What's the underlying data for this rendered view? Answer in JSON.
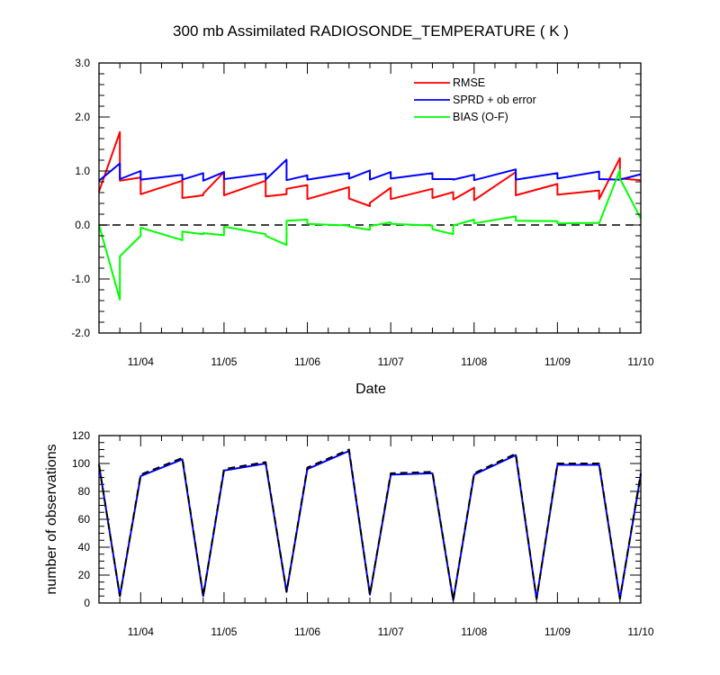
{
  "chart_data": [
    {
      "type": "line",
      "title": "300 mb Assimilated RADIOSONDE_TEMPERATURE ( K )",
      "xlabel": "Date",
      "ylabel": "",
      "xlim": [
        "11/03 12Z",
        "11/10 00Z"
      ],
      "ylim": [
        -2.0,
        3.0
      ],
      "yticks": [
        "3.0",
        "2.0",
        "1.0",
        "0.0",
        "-1.0",
        "-2.0"
      ],
      "xticks": [
        "11/04",
        "11/05",
        "11/06",
        "11/07",
        "11/08",
        "11/09",
        "11/10"
      ],
      "x": [
        "11/03 12Z",
        "11/03 18Z",
        "11/04 00Z",
        "11/04 06Z",
        "11/04 12Z",
        "11/04 18Z",
        "11/05 00Z",
        "11/05 06Z",
        "11/05 12Z",
        "11/05 18Z",
        "11/06 00Z",
        "11/06 06Z",
        "11/06 12Z",
        "11/06 18Z",
        "11/07 00Z",
        "11/07 06Z",
        "11/07 12Z",
        "11/07 18Z",
        "11/08 00Z",
        "11/08 06Z",
        "11/08 12Z",
        "11/08 18Z",
        "11/09 00Z",
        "11/09 06Z",
        "11/09 12Z",
        "11/09 18Z",
        "11/10 00Z"
      ],
      "reference_line": {
        "y": 0.0,
        "style": "dashed"
      },
      "legend_position": "top-right",
      "series": [
        {
          "name": "RMSE",
          "color": "#ff0000",
          "segments": [
            [
              [
                0.0,
                0.62
              ],
              [
                0.25,
                1.72
              ]
            ],
            [
              [
                0.25,
                0.82
              ],
              [
                0.5,
                0.88
              ]
            ],
            [
              [
                0.5,
                0.57
              ],
              [
                1.0,
                0.82
              ]
            ],
            [
              [
                1.0,
                0.5
              ],
              [
                1.25,
                0.55
              ]
            ],
            [
              [
                1.25,
                0.58
              ],
              [
                1.5,
                0.98
              ]
            ],
            [
              [
                1.5,
                0.55
              ],
              [
                2.0,
                0.82
              ]
            ],
            [
              [
                2.0,
                0.53
              ],
              [
                2.25,
                0.57
              ]
            ],
            [
              [
                2.25,
                0.67
              ],
              [
                2.5,
                0.74
              ]
            ],
            [
              [
                2.5,
                0.48
              ],
              [
                3.0,
                0.7
              ]
            ],
            [
              [
                3.0,
                0.49
              ],
              [
                3.25,
                0.35
              ]
            ],
            [
              [
                3.25,
                0.41
              ],
              [
                3.5,
                0.69
              ]
            ],
            [
              [
                3.5,
                0.48
              ],
              [
                4.0,
                0.67
              ]
            ],
            [
              [
                4.0,
                0.5
              ],
              [
                4.25,
                0.61
              ]
            ],
            [
              [
                4.25,
                0.47
              ],
              [
                4.5,
                0.69
              ]
            ],
            [
              [
                4.5,
                0.46
              ],
              [
                5.0,
                0.98
              ]
            ],
            [
              [
                5.0,
                0.55
              ],
              [
                5.5,
                0.76
              ]
            ],
            [
              [
                5.5,
                0.56
              ],
              [
                6.0,
                0.64
              ]
            ],
            [
              [
                6.0,
                0.48
              ],
              [
                6.25,
                1.24
              ]
            ],
            [
              [
                6.25,
                0.86
              ],
              [
                6.5,
                0.83
              ]
            ]
          ]
        },
        {
          "name": "SPRD + ob error",
          "color": "#0000ff",
          "segments": [
            [
              [
                0.0,
                0.82
              ],
              [
                0.25,
                1.14
              ]
            ],
            [
              [
                0.25,
                0.85
              ],
              [
                0.5,
                1.0
              ]
            ],
            [
              [
                0.5,
                0.84
              ],
              [
                1.0,
                0.93
              ]
            ],
            [
              [
                1.0,
                0.84
              ],
              [
                1.25,
                0.96
              ]
            ],
            [
              [
                1.25,
                0.82
              ],
              [
                1.5,
                0.98
              ]
            ],
            [
              [
                1.5,
                0.85
              ],
              [
                2.0,
                0.95
              ]
            ],
            [
              [
                2.0,
                0.84
              ],
              [
                2.25,
                1.21
              ]
            ],
            [
              [
                2.25,
                0.83
              ],
              [
                2.5,
                0.92
              ]
            ],
            [
              [
                2.5,
                0.84
              ],
              [
                3.0,
                0.96
              ]
            ],
            [
              [
                3.0,
                0.86
              ],
              [
                3.25,
                1.01
              ]
            ],
            [
              [
                3.25,
                0.84
              ],
              [
                3.5,
                0.98
              ]
            ],
            [
              [
                3.5,
                0.86
              ],
              [
                4.0,
                0.96
              ]
            ],
            [
              [
                4.0,
                0.85
              ],
              [
                4.25,
                0.85
              ]
            ],
            [
              [
                4.25,
                0.84
              ],
              [
                4.5,
                0.93
              ]
            ],
            [
              [
                4.5,
                0.83
              ],
              [
                5.0,
                1.03
              ]
            ],
            [
              [
                5.0,
                0.84
              ],
              [
                5.5,
                0.96
              ]
            ],
            [
              [
                5.5,
                0.86
              ],
              [
                6.0,
                0.99
              ]
            ],
            [
              [
                6.0,
                0.85
              ],
              [
                6.25,
                0.84
              ]
            ],
            [
              [
                6.25,
                0.84
              ],
              [
                6.5,
                0.94
              ]
            ]
          ]
        },
        {
          "name": "BIAS (O-F)",
          "color": "#00ff00",
          "segments": [
            [
              [
                0.0,
                0.0
              ],
              [
                0.25,
                -1.38
              ]
            ],
            [
              [
                0.25,
                -0.58
              ],
              [
                0.5,
                -0.2
              ]
            ],
            [
              [
                0.5,
                -0.05
              ],
              [
                1.0,
                -0.28
              ]
            ],
            [
              [
                1.0,
                -0.12
              ],
              [
                1.25,
                -0.17
              ]
            ],
            [
              [
                1.25,
                -0.15
              ],
              [
                1.5,
                -0.19
              ]
            ],
            [
              [
                1.5,
                -0.03
              ],
              [
                2.0,
                -0.17
              ]
            ],
            [
              [
                2.0,
                -0.2
              ],
              [
                2.25,
                -0.37
              ]
            ],
            [
              [
                2.25,
                0.08
              ],
              [
                2.5,
                0.1
              ]
            ],
            [
              [
                2.5,
                0.02
              ],
              [
                3.0,
                -0.01
              ]
            ],
            [
              [
                3.0,
                -0.03
              ],
              [
                3.25,
                -0.09
              ]
            ],
            [
              [
                3.25,
                -0.02
              ],
              [
                3.5,
                0.05
              ]
            ],
            [
              [
                3.5,
                0.02
              ],
              [
                4.0,
                -0.01
              ]
            ],
            [
              [
                4.0,
                -0.08
              ],
              [
                4.25,
                -0.17
              ]
            ],
            [
              [
                4.25,
                -0.01
              ],
              [
                4.5,
                0.1
              ]
            ],
            [
              [
                4.5,
                0.03
              ],
              [
                5.0,
                0.16
              ]
            ],
            [
              [
                5.0,
                0.08
              ],
              [
                5.5,
                0.07
              ]
            ],
            [
              [
                5.5,
                0.03
              ],
              [
                6.0,
                0.04
              ]
            ],
            [
              [
                6.0,
                0.03
              ],
              [
                6.25,
                1.02
              ]
            ],
            [
              [
                6.25,
                0.86
              ],
              [
                6.5,
                0.12
              ]
            ]
          ]
        }
      ]
    },
    {
      "type": "line",
      "title": "",
      "xlabel": "",
      "ylabel": "number of observations",
      "xlim": [
        "11/03 12Z",
        "11/10 00Z"
      ],
      "ylim": [
        0,
        120
      ],
      "yticks": [
        "120",
        "100",
        "80",
        "60",
        "40",
        "20",
        "0"
      ],
      "xticks": [
        "11/04",
        "11/05",
        "11/06",
        "11/07",
        "11/08",
        "11/09",
        "11/10"
      ],
      "series": [
        {
          "color": "#0000ff",
          "style": "solid",
          "points": [
            [
              0.0,
              99
            ],
            [
              0.25,
              5
            ],
            [
              0.5,
              91
            ],
            [
              1.0,
              103
            ],
            [
              1.25,
              5
            ],
            [
              1.5,
              95
            ],
            [
              2.0,
              100
            ],
            [
              2.25,
              8
            ],
            [
              2.5,
              96
            ],
            [
              3.0,
              109
            ],
            [
              3.25,
              6
            ],
            [
              3.5,
              92
            ],
            [
              4.0,
              93
            ],
            [
              4.25,
              2
            ],
            [
              4.5,
              92
            ],
            [
              5.0,
              106
            ],
            [
              5.25,
              3
            ],
            [
              5.5,
              99
            ],
            [
              6.0,
              99
            ],
            [
              6.25,
              3
            ],
            [
              6.5,
              92
            ]
          ]
        },
        {
          "color": "#000000",
          "style": "dashed",
          "points": [
            [
              0.0,
              99
            ],
            [
              0.25,
              5
            ],
            [
              0.5,
              92
            ],
            [
              1.0,
              104
            ],
            [
              1.25,
              5
            ],
            [
              1.5,
              96
            ],
            [
              2.0,
              101
            ],
            [
              2.25,
              8
            ],
            [
              2.5,
              97
            ],
            [
              3.0,
              110
            ],
            [
              3.25,
              6
            ],
            [
              3.5,
              93
            ],
            [
              4.0,
              94
            ],
            [
              4.25,
              2
            ],
            [
              4.5,
              93
            ],
            [
              5.0,
              107
            ],
            [
              5.25,
              3
            ],
            [
              5.5,
              100
            ],
            [
              6.0,
              100
            ],
            [
              6.25,
              3
            ],
            [
              6.5,
              93
            ]
          ]
        }
      ]
    }
  ]
}
